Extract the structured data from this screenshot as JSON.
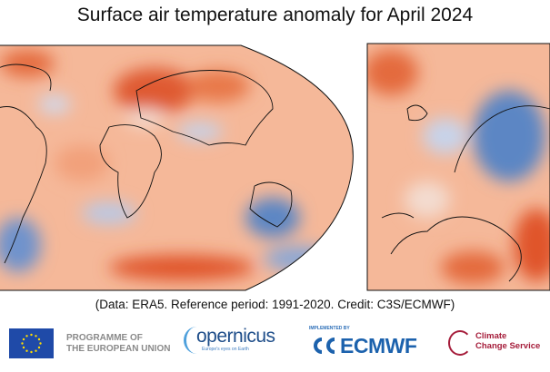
{
  "title": "Surface air temperature anomaly for April 2024",
  "credit": "(Data: ERA5.  Reference period: 1991-2020.  Credit: C3S/ECMWF)",
  "maps": {
    "panels": [
      "global",
      "europe"
    ],
    "colors": {
      "warm": "#e0542a",
      "mild": "#f5b899",
      "cool": "#4f7fc0",
      "neutral": "#f7eae3"
    }
  },
  "logos": {
    "eu_line1": "PROGRAMME OF",
    "eu_line2": "THE EUROPEAN UNION",
    "copernicus": "opernicus",
    "copernicus_tagline": "Europe's eyes on Earth",
    "implemented_by": "IMPLEMENTED BY",
    "ecmwf": "ECMWF",
    "c3s_line1": "Climate",
    "c3s_line2": "Change Service"
  }
}
